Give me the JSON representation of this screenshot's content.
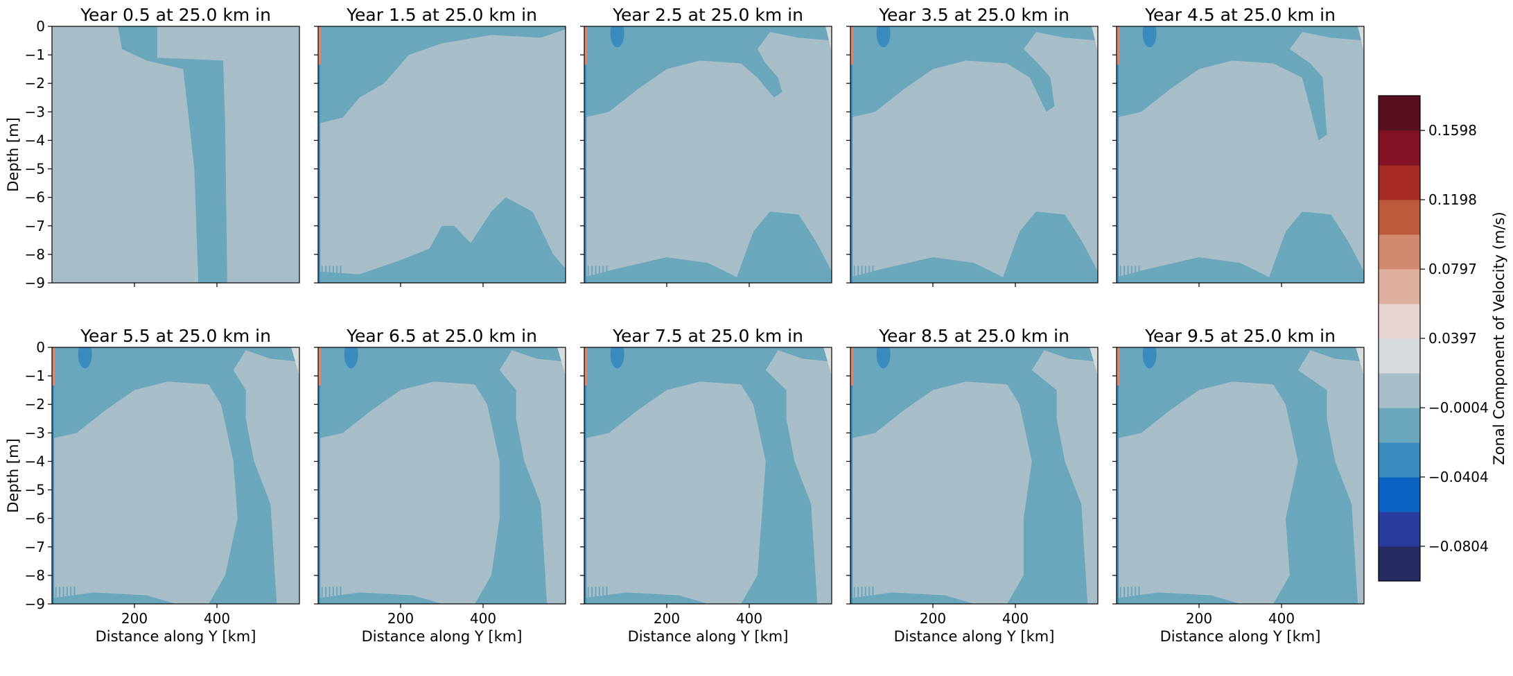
{
  "figure": {
    "ylabel": "Depth [m]",
    "xlabel": "Distance along Y [km]",
    "colorbar_label": "Zonal Component of Velocity (m/s)"
  },
  "chart_data": {
    "type": "heatmap",
    "panels": [
      {
        "title": "Year 0.5 at 25.0 km in",
        "variant": 0
      },
      {
        "title": "Year 1.5 at 25.0 km in",
        "variant": 1
      },
      {
        "title": "Year 2.5 at 25.0 km in",
        "variant": 2
      },
      {
        "title": "Year 3.5 at 25.0 km in",
        "variant": 3
      },
      {
        "title": "Year 4.5 at 25.0 km in",
        "variant": 4
      },
      {
        "title": "Year 5.5 at 25.0 km in",
        "variant": 5
      },
      {
        "title": "Year 6.5 at 25.0 km in",
        "variant": 6
      },
      {
        "title": "Year 7.5 at 25.0 km in",
        "variant": 7
      },
      {
        "title": "Year 8.5 at 25.0 km in",
        "variant": 8
      },
      {
        "title": "Year 9.5 at 25.0 km in",
        "variant": 9
      }
    ],
    "xlim": [
      0,
      600
    ],
    "ylim": [
      -9,
      0
    ],
    "xticks": [
      200,
      400
    ],
    "xtick_labels": [
      "200",
      "400"
    ],
    "yticks": [
      0,
      -1,
      -2,
      -3,
      -4,
      -5,
      -6,
      -7,
      -8,
      -9
    ],
    "ytick_labels": [
      "0",
      "−1",
      "−2",
      "−3",
      "−4",
      "−5",
      "−6",
      "−7",
      "−8",
      "−9"
    ],
    "colorbar": {
      "colors": [
        "#252a5f",
        "#2a3c9e",
        "#0b63c4",
        "#3a8bbf",
        "#6aa6bc",
        "#a7bec9",
        "#d7dadc",
        "#e8d5d1",
        "#deaf9f",
        "#d18a70",
        "#bc5a3b",
        "#a52a24",
        "#841227",
        "#580f20"
      ],
      "range": [
        -0.1005,
        0.1799
      ],
      "ticks": [
        -0.0804,
        -0.0404,
        -0.0004,
        0.0397,
        0.0797,
        0.1198,
        0.1598
      ],
      "tick_labels": [
        "−0.0804",
        "−0.0404",
        "−0.0004",
        "0.0397",
        "0.0797",
        "0.1198",
        "0.1598"
      ]
    }
  }
}
